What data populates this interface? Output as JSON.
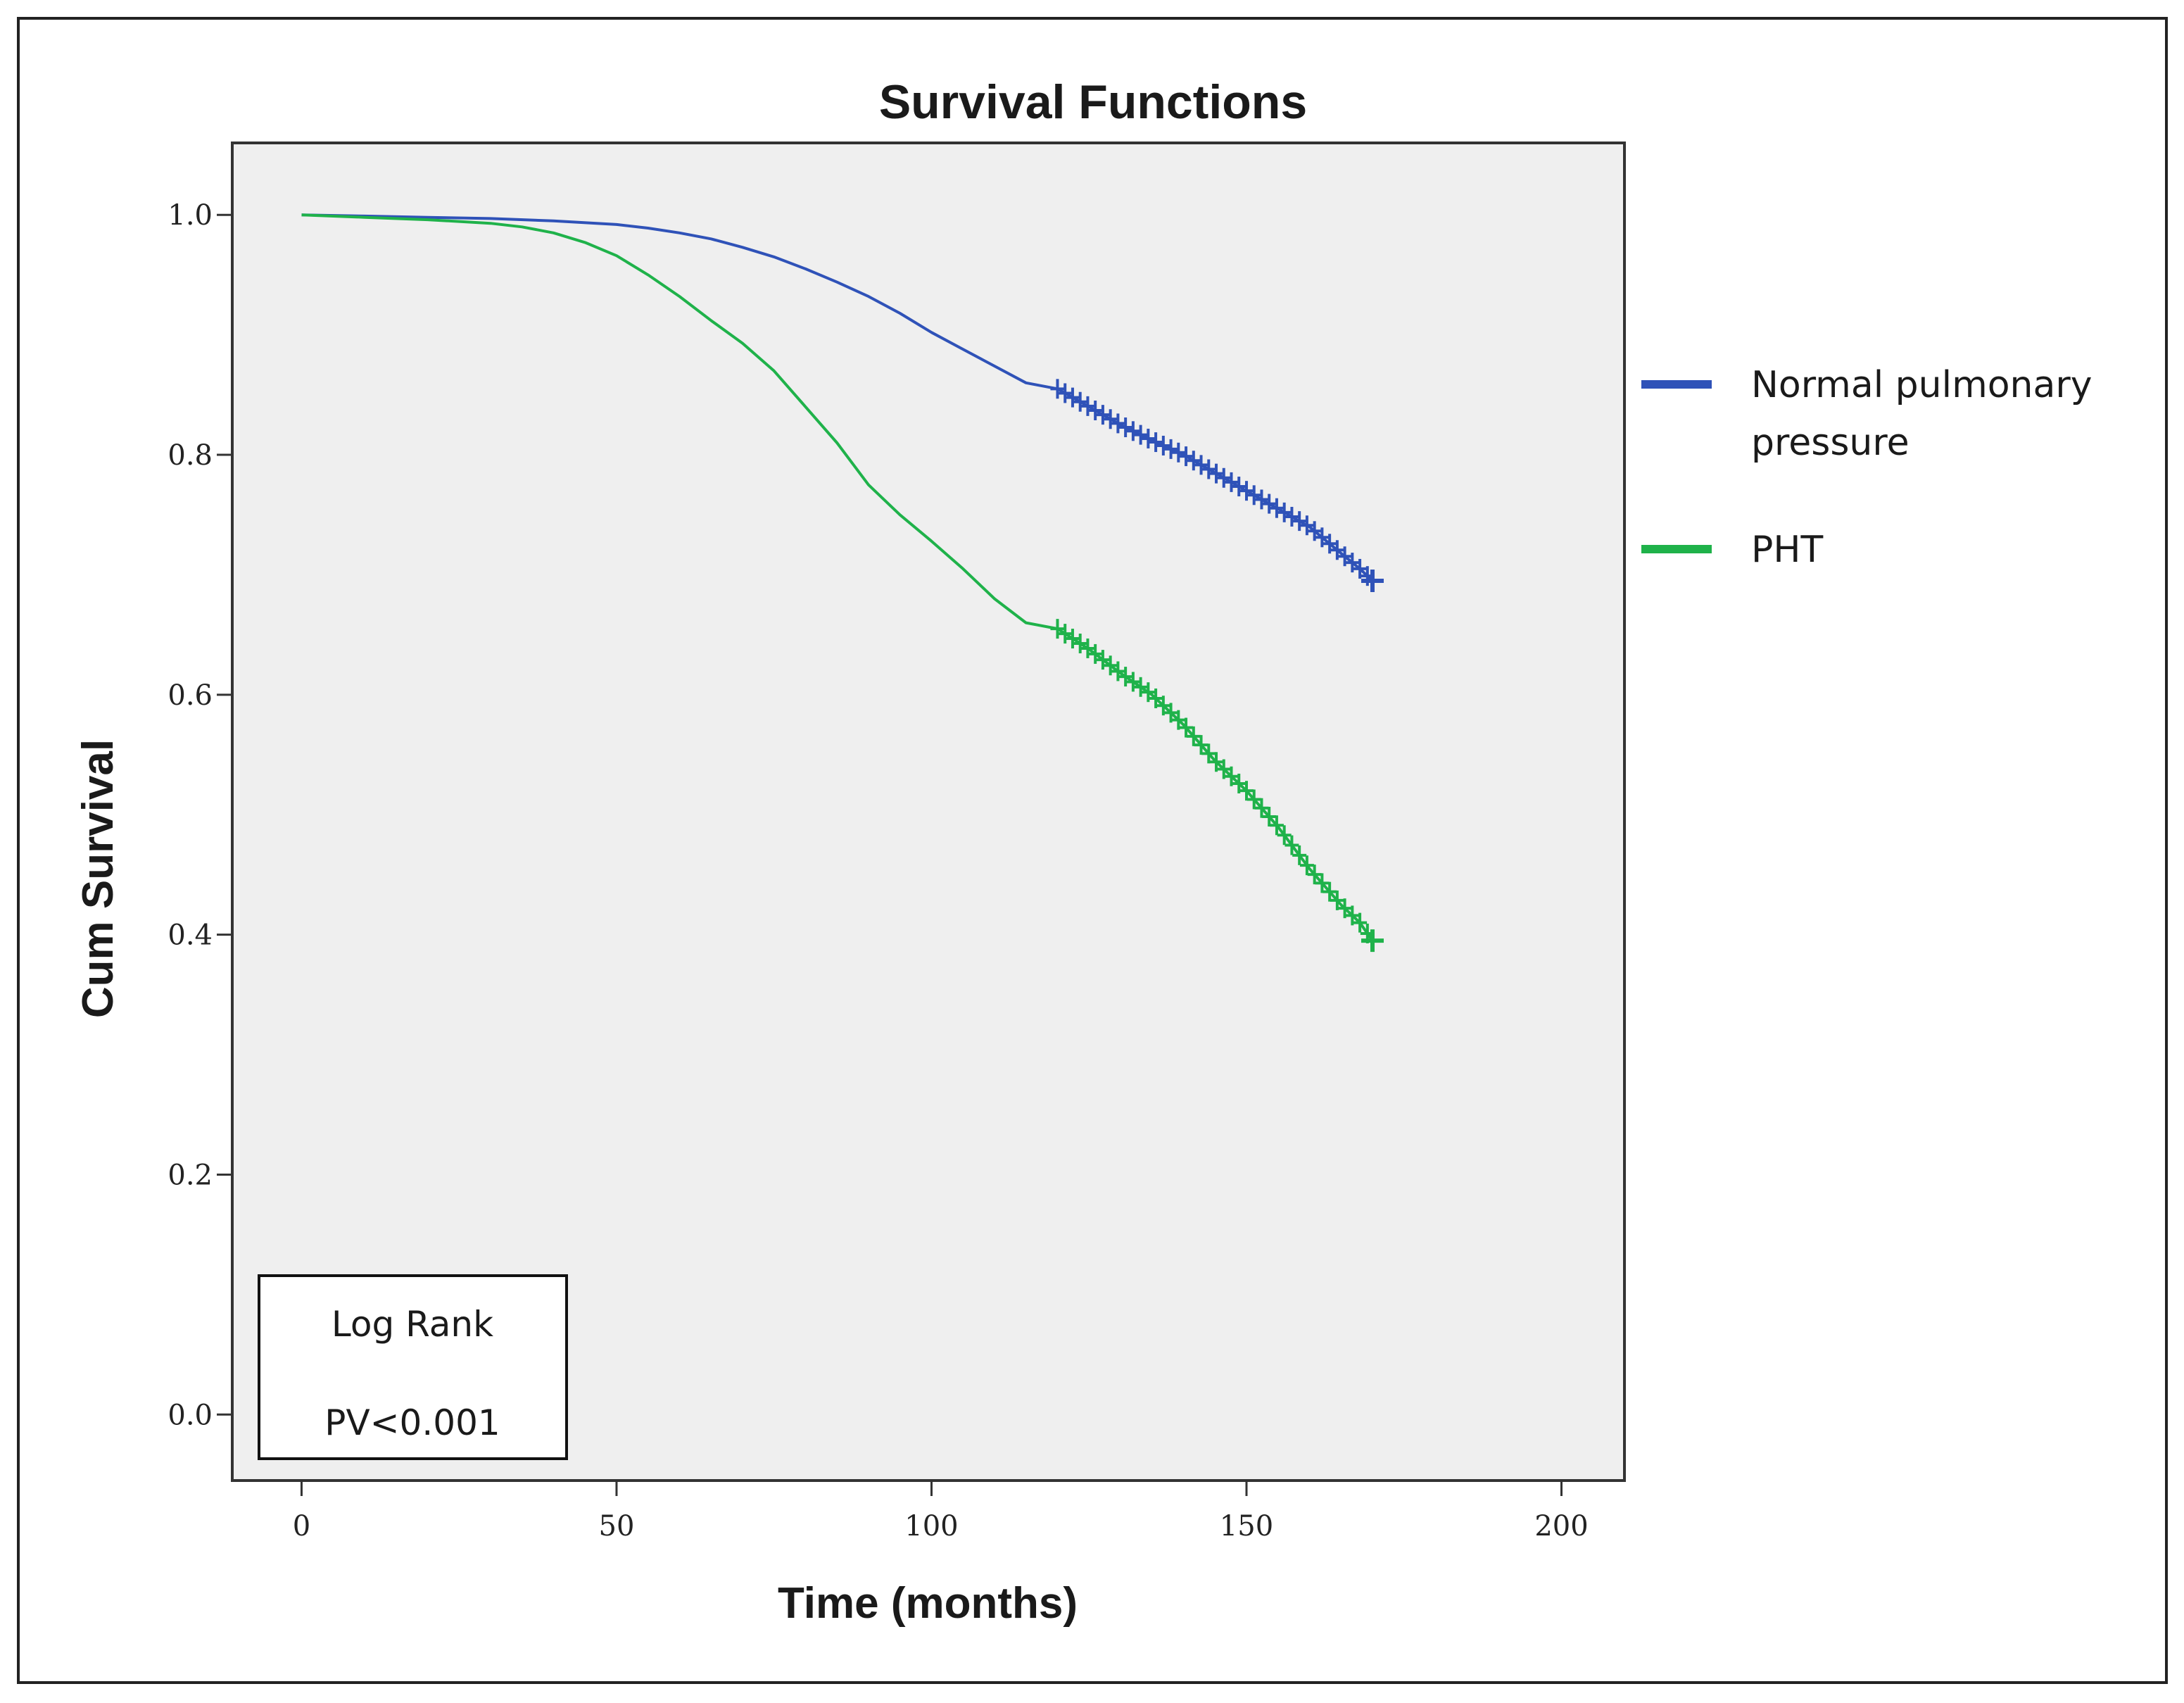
{
  "chart_data": {
    "type": "line",
    "subtype": "kaplan-meier",
    "title": "Survival Functions",
    "xlabel": "Time (months)",
    "ylabel": "Cum Survival",
    "xlim": [
      -11,
      210
    ],
    "ylim": [
      -0.055,
      1.06
    ],
    "xticks": [
      0,
      50,
      100,
      150,
      200
    ],
    "yticks": [
      0.0,
      0.2,
      0.4,
      0.6,
      0.8,
      1.0
    ],
    "xtick_labels": [
      "0",
      "50",
      "100",
      "150",
      "200"
    ],
    "ytick_labels": [
      "0.0",
      "0.2",
      "0.4",
      "0.6",
      "0.8",
      "1.0"
    ],
    "legend_position": "right-outside",
    "series": [
      {
        "name": "Normal pulmonary pressure",
        "legend_lines": [
          "Normal pulmonary",
          "pressure"
        ],
        "color": "#2f52b8",
        "x": [
          0,
          10,
          20,
          30,
          40,
          50,
          55,
          60,
          65,
          70,
          75,
          80,
          85,
          90,
          95,
          100,
          105,
          110,
          115,
          120,
          125,
          130,
          135,
          140,
          145,
          150,
          155,
          160,
          165,
          168,
          170
        ],
        "y": [
          1.0,
          0.999,
          0.998,
          0.997,
          0.995,
          0.992,
          0.989,
          0.985,
          0.98,
          0.973,
          0.965,
          0.955,
          0.944,
          0.932,
          0.918,
          0.902,
          0.888,
          0.874,
          0.86,
          0.855,
          0.84,
          0.825,
          0.812,
          0.8,
          0.785,
          0.77,
          0.755,
          0.74,
          0.718,
          0.705,
          0.695
        ],
        "censor_start": 120
      },
      {
        "name": "PHT",
        "legend_lines": [
          "PHT"
        ],
        "color": "#1fb24a",
        "x": [
          0,
          10,
          20,
          30,
          35,
          40,
          45,
          50,
          55,
          60,
          65,
          70,
          75,
          80,
          85,
          90,
          95,
          100,
          105,
          110,
          115,
          120,
          125,
          130,
          135,
          140,
          145,
          150,
          155,
          160,
          165,
          168,
          170
        ],
        "y": [
          1.0,
          0.998,
          0.996,
          0.993,
          0.99,
          0.985,
          0.977,
          0.966,
          0.95,
          0.932,
          0.912,
          0.893,
          0.87,
          0.84,
          0.81,
          0.775,
          0.75,
          0.728,
          0.705,
          0.68,
          0.66,
          0.655,
          0.638,
          0.618,
          0.6,
          0.575,
          0.545,
          0.52,
          0.49,
          0.455,
          0.425,
          0.41,
          0.395
        ],
        "censor_start": 120
      }
    ],
    "annotation": {
      "lines": [
        "Log Rank",
        "PV<0.001"
      ],
      "position": "bottom-left"
    }
  }
}
